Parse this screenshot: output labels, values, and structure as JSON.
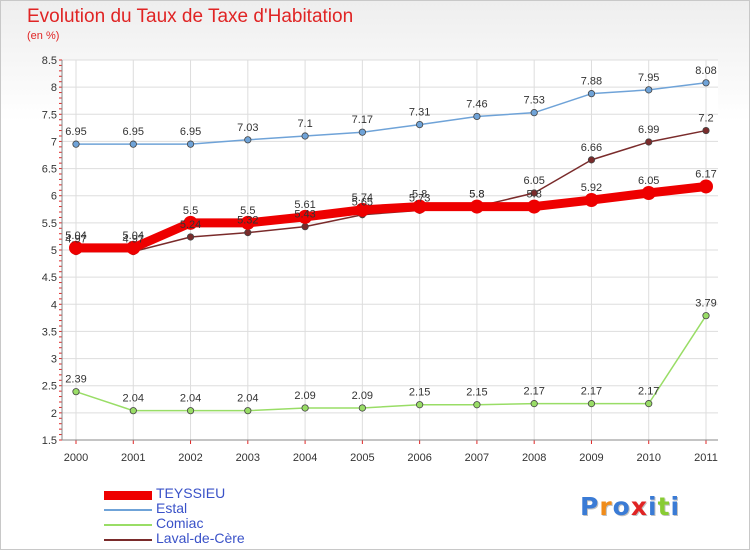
{
  "title": "Evolution du Taux de Taxe d'Habitation",
  "subtitle": "(en %)",
  "logo_text": "Proxiti",
  "chart_data": {
    "type": "line",
    "x": [
      "2000",
      "2001",
      "2002",
      "2003",
      "2004",
      "2005",
      "2006",
      "2007",
      "2008",
      "2009",
      "2010",
      "2011"
    ],
    "ylim": [
      1.5,
      8.5
    ],
    "yticks": [
      "1.5",
      "2",
      "2.5",
      "3",
      "3.5",
      "4",
      "4.5",
      "5",
      "5.5",
      "6",
      "6.5",
      "7",
      "7.5",
      "8",
      "8.5"
    ],
    "grid": true,
    "legend_position": "bottom-left",
    "series": [
      {
        "name": "TEYSSIEU",
        "color": "#ee0000",
        "values": [
          5.04,
          5.04,
          5.5,
          5.5,
          5.61,
          5.74,
          5.8,
          5.8,
          5.8,
          5.92,
          6.05,
          6.17
        ],
        "labels": [
          "5.04",
          "5.04",
          "5.5",
          "5.5",
          "5.61",
          "5.74",
          "5.8",
          "5.8",
          "5.8",
          "5.92",
          "6.05",
          "6.17"
        ]
      },
      {
        "name": "Estal",
        "color": "#6fa3d8",
        "values": [
          6.95,
          6.95,
          6.95,
          7.03,
          7.1,
          7.17,
          7.31,
          7.46,
          7.53,
          7.88,
          7.95,
          8.08
        ],
        "labels": [
          "6.95",
          "6.95",
          "6.95",
          "7.03",
          "7.1",
          "7.17",
          "7.31",
          "7.46",
          "7.53",
          "7.88",
          "7.95",
          "8.08"
        ]
      },
      {
        "name": "Comiac",
        "color": "#99dd66",
        "values": [
          2.39,
          2.04,
          2.04,
          2.04,
          2.09,
          2.09,
          2.15,
          2.15,
          2.17,
          2.17,
          2.17,
          3.79
        ],
        "labels": [
          "2.39",
          "2.04",
          "2.04",
          "2.04",
          "2.09",
          "2.09",
          "2.15",
          "2.15",
          "2.17",
          "2.17",
          "2.17",
          "3.79"
        ]
      },
      {
        "name": "Laval-de-Cère",
        "color": "#7a2b2b",
        "values": [
          4.97,
          4.97,
          5.24,
          5.32,
          5.43,
          5.65,
          5.73,
          5.8,
          6.05,
          6.66,
          6.99,
          7.2
        ],
        "labels": [
          "4.97",
          "4.97",
          "5.24",
          "5.32",
          "5.43",
          "5.65",
          "5.73",
          "5.8",
          "6.05",
          "6.66",
          "6.99",
          "7.2"
        ]
      }
    ]
  }
}
